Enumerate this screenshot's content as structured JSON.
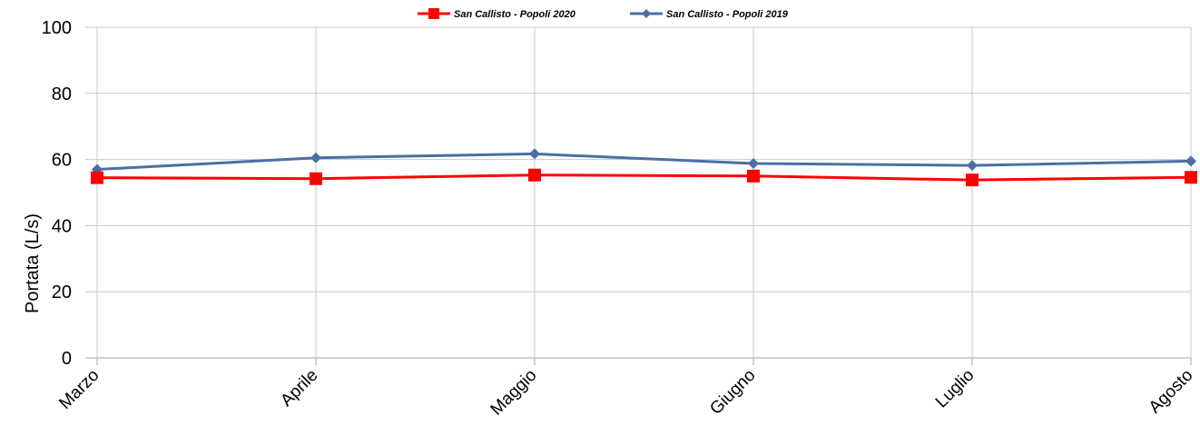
{
  "chart_data": {
    "type": "line",
    "categories": [
      "Marzo",
      "Aprile",
      "Maggio",
      "Giugno",
      "Luglio",
      "Agosto"
    ],
    "series": [
      {
        "name": "San Callisto  - Popoli 2020",
        "values": [
          54.5,
          54.2,
          55.3,
          55.0,
          53.8,
          54.6
        ],
        "color": "#ff0000",
        "marker": "square"
      },
      {
        "name": "San Callisto  - Popoli 2019",
        "values": [
          57.0,
          60.5,
          61.7,
          58.8,
          58.2,
          59.5
        ],
        "color": "#4a6fa5",
        "marker": "diamond"
      }
    ],
    "xlabel": "",
    "ylabel": "Portata (L/s)",
    "ylim": [
      0,
      100
    ],
    "yticks": [
      0,
      20,
      40,
      60,
      80,
      100
    ],
    "grid": true,
    "legend_position": "top-center"
  }
}
